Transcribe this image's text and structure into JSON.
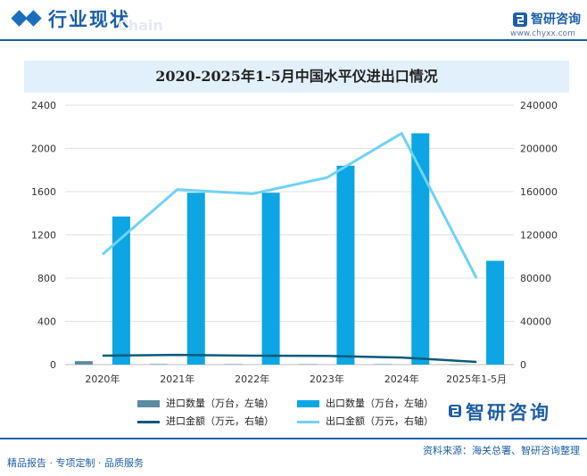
{
  "header": {
    "section_title": "行业现状",
    "ghost_text": "Chain",
    "brand_name": "智研咨询",
    "brand_url": "www.chyxx.com"
  },
  "chart_data": {
    "type": "bar+line",
    "title": "2020-2025年1-5月中国水平仪进出口情况",
    "categories": [
      "2020年",
      "2021年",
      "2022年",
      "2023年",
      "2024年",
      "2025年1-5月"
    ],
    "y_left": {
      "ylim": [
        0,
        2400
      ],
      "ticks": [
        "0",
        "400",
        "800",
        "1200",
        "1600",
        "2000",
        "2400"
      ]
    },
    "y_right": {
      "ylim": [
        0,
        240000
      ],
      "ticks": [
        "0",
        "40000",
        "80000",
        "120000",
        "160000",
        "200000",
        "240000"
      ]
    },
    "grid": true,
    "legend_position": "bottom",
    "series": [
      {
        "name": "进口数量（万台，左轴）",
        "type": "bar",
        "axis": "left",
        "color": "#5b8ba3",
        "values": [
          32,
          5,
          4,
          3,
          4,
          2
        ]
      },
      {
        "name": "出口数量（万台，左轴）",
        "type": "bar",
        "axis": "left",
        "color": "#0ba6e3",
        "values": [
          1370,
          1590,
          1590,
          1840,
          2140,
          960
        ]
      },
      {
        "name": "进口金额（万元，右轴）",
        "type": "line",
        "axis": "right",
        "color": "#0a5a7a",
        "values": [
          8200,
          9000,
          8200,
          8000,
          6500,
          2500
        ]
      },
      {
        "name": "出口金额（万元，右轴）",
        "type": "line",
        "axis": "right",
        "color": "#6fd2f5",
        "values": [
          102000,
          162000,
          158000,
          173000,
          214000,
          80000
        ]
      }
    ]
  },
  "footer": {
    "brand_name": "智研咨询",
    "left_text": "精品报告 · 专项定制 · 品质服务",
    "source_text": "资料来源：海关总署、智研咨询整理"
  }
}
